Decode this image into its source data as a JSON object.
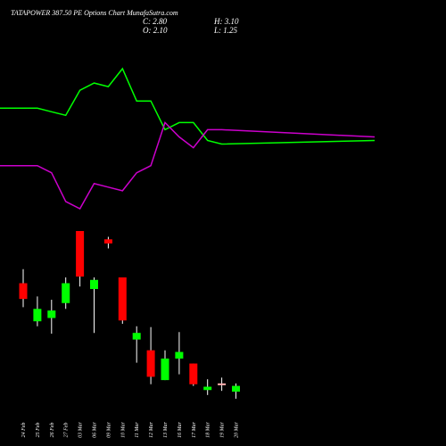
{
  "header": {
    "title": "TATAPOWER 387.50 PE Options Chart MunafaSutra.com",
    "close": "C: 2.80",
    "open": "O: 2.10",
    "high": "H: 3.10",
    "low": "L: 1.25"
  },
  "colors": {
    "background": "#000000",
    "up": "#00ff00",
    "down": "#ff0000",
    "doji": "#ffb0b0",
    "wick": "#ffffff",
    "green_line": "#00ff00",
    "magenta_line": "#cc00cc"
  },
  "chart_data": {
    "type": "candlestick",
    "categories": [
      "24 Feb",
      "25 Feb",
      "26 Feb",
      "27 Feb",
      "03 Mar",
      "06 Mar",
      "09 Mar",
      "10 Mar",
      "11 Mar",
      "12 Mar",
      "13 Mar",
      "16 Mar",
      "17 Mar",
      "18 Mar",
      "19 Mar",
      "20 Mar"
    ],
    "candles": [
      {
        "open": 15.2,
        "high": 16.9,
        "low": 12.3,
        "close": 13.3
      },
      {
        "open": 10.6,
        "high": 13.6,
        "low": 10.0,
        "close": 12.1
      },
      {
        "open": 11.0,
        "high": 13.2,
        "low": 9.1,
        "close": 11.9
      },
      {
        "open": 12.8,
        "high": 15.9,
        "low": 12.1,
        "close": 15.2
      },
      {
        "open": 21.5,
        "high": 21.5,
        "low": 14.8,
        "close": 16.0
      },
      {
        "open": 14.5,
        "high": 15.9,
        "low": 9.2,
        "close": 15.6
      },
      {
        "open": 20.5,
        "high": 20.8,
        "low": 19.4,
        "close": 20.0
      },
      {
        "open": 15.9,
        "high": 15.9,
        "low": 10.3,
        "close": 10.7
      },
      {
        "open": 8.4,
        "high": 10.0,
        "low": 5.6,
        "close": 9.2
      },
      {
        "open": 7.1,
        "high": 9.9,
        "low": 3.0,
        "close": 3.9
      },
      {
        "open": 3.5,
        "high": 7.1,
        "low": 3.5,
        "close": 6.1
      },
      {
        "open": 6.1,
        "high": 9.3,
        "low": 4.2,
        "close": 6.9
      },
      {
        "open": 5.5,
        "high": 5.5,
        "low": 2.8,
        "close": 3.0
      },
      {
        "open": 2.3,
        "high": 3.6,
        "low": 1.7,
        "close": 2.7
      },
      {
        "open": 3.1,
        "high": 3.8,
        "low": 2.2,
        "close": 3.1
      },
      {
        "open": 2.1,
        "high": 3.1,
        "low": 1.25,
        "close": 2.8
      }
    ],
    "series": [
      {
        "values": [
          46,
          46,
          45,
          44,
          51,
          53,
          52,
          57,
          48,
          48,
          40,
          42,
          42,
          37,
          36,
          37
        ]
      },
      {
        "values": [
          30,
          30,
          28,
          20,
          18,
          25,
          24,
          23,
          28,
          30,
          42,
          38,
          35,
          40,
          40,
          38
        ]
      }
    ]
  }
}
